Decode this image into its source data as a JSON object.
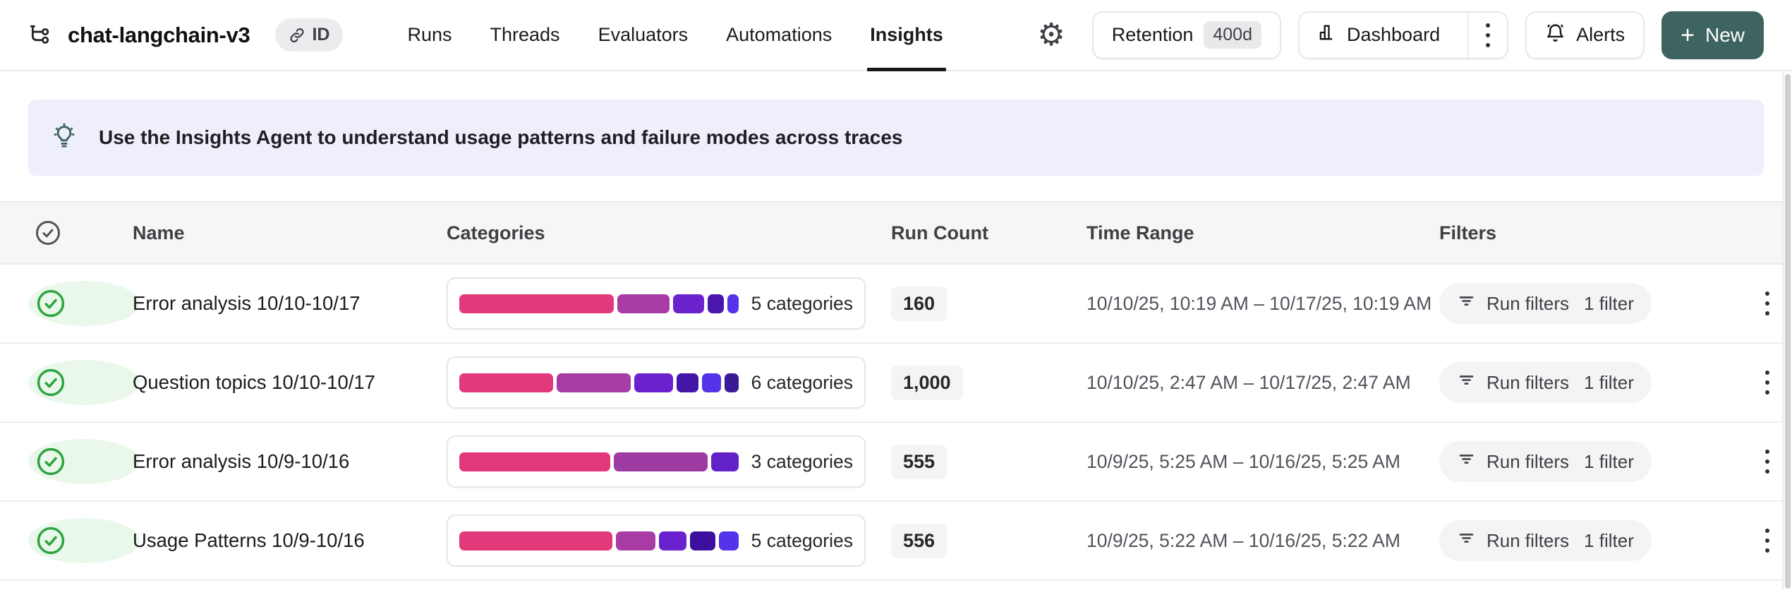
{
  "header": {
    "title": "chat-langchain-v3",
    "id_badge": {
      "icon": "link-icon",
      "label": "ID"
    },
    "tabs": [
      {
        "label": "Runs",
        "active": false
      },
      {
        "label": "Threads",
        "active": false
      },
      {
        "label": "Evaluators",
        "active": false
      },
      {
        "label": "Automations",
        "active": false
      },
      {
        "label": "Insights",
        "active": true
      }
    ],
    "toolbar": {
      "settings_glyph": "⚙",
      "retention": {
        "label": "Retention",
        "badge": "400d"
      },
      "dashboard": {
        "icon": "bar-chart-icon",
        "label": "Dashboard"
      },
      "alerts": {
        "icon": "bell-icon",
        "label": "Alerts"
      },
      "new": {
        "plus": "+",
        "label": "New"
      }
    }
  },
  "banner": {
    "icon": "lightbulb-icon",
    "text": "Use the Insights Agent to understand usage patterns and failure modes across traces"
  },
  "table": {
    "columns": {
      "name": "Name",
      "categories": "Categories",
      "run_count": "Run Count",
      "time_range": "Time Range",
      "filters": "Filters"
    },
    "rows": [
      {
        "status": "complete",
        "name": "Error analysis 10/10-10/17",
        "categories_label": "5 categories",
        "run_count": "160",
        "time_range": "10/10/25, 10:19 AM – 10/17/25, 10:19 AM",
        "filters": {
          "label": "Run filters",
          "count": "1 filter"
        },
        "segments": [
          {
            "pct": 56,
            "color": "#E2397B"
          },
          {
            "pct": 19,
            "color": "#A93BA5"
          },
          {
            "pct": 11,
            "color": "#6B22CE"
          },
          {
            "pct": 6,
            "color": "#4A16B0"
          },
          {
            "pct": 4,
            "color": "#5433E8"
          }
        ]
      },
      {
        "status": "complete",
        "name": "Question topics 10/10-10/17",
        "categories_label": "6 categories",
        "run_count": "1,000",
        "time_range": "10/10/25, 2:47 AM – 10/17/25, 2:47 AM",
        "filters": {
          "label": "Run filters",
          "count": "1 filter"
        },
        "segments": [
          {
            "pct": 34,
            "color": "#E2397B"
          },
          {
            "pct": 27,
            "color": "#A93BA5"
          },
          {
            "pct": 14,
            "color": "#6B22CE"
          },
          {
            "pct": 8,
            "color": "#4416A8"
          },
          {
            "pct": 7,
            "color": "#5433E8"
          },
          {
            "pct": 5,
            "color": "#3A1A96"
          }
        ]
      },
      {
        "status": "complete",
        "name": "Error analysis 10/9-10/16",
        "categories_label": "3 categories",
        "run_count": "555",
        "time_range": "10/9/25, 5:25 AM – 10/16/25, 5:25 AM",
        "filters": {
          "label": "Run filters",
          "count": "1 filter"
        },
        "segments": [
          {
            "pct": 55,
            "color": "#E2397B"
          },
          {
            "pct": 34,
            "color": "#9E3BA2"
          },
          {
            "pct": 10,
            "color": "#6322C8"
          }
        ]
      },
      {
        "status": "complete",
        "name": "Usage Patterns 10/9-10/16",
        "categories_label": "5 categories",
        "run_count": "556",
        "time_range": "10/9/25, 5:22 AM – 10/16/25, 5:22 AM",
        "filters": {
          "label": "Run filters",
          "count": "1 filter"
        },
        "segments": [
          {
            "pct": 55,
            "color": "#E2397B"
          },
          {
            "pct": 14,
            "color": "#A93BA5"
          },
          {
            "pct": 10,
            "color": "#6B22CE"
          },
          {
            "pct": 9,
            "color": "#3D0F9E"
          },
          {
            "pct": 7,
            "color": "#5433E8"
          }
        ]
      }
    ]
  },
  "colors": {
    "new_button": "#3E645F",
    "banner_bg": "#EFEEFB",
    "status_green": "#2DA53D",
    "table_header_bg": "#F6F6F5",
    "pill_bg": "#F4F4F5"
  }
}
